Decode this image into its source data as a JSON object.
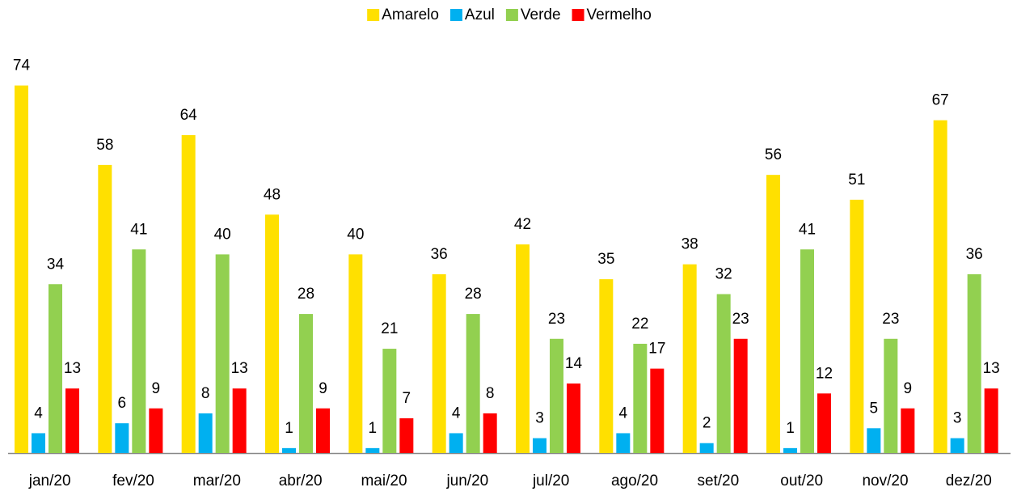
{
  "chart_data": {
    "type": "bar",
    "categories": [
      "jan/20",
      "fev/20",
      "mar/20",
      "abr/20",
      "mai/20",
      "jun/20",
      "jul/20",
      "ago/20",
      "set/20",
      "out/20",
      "nov/20",
      "dez/20"
    ],
    "series": [
      {
        "name": "Amarelo",
        "color": "#FFE000",
        "values": [
          74,
          58,
          64,
          48,
          40,
          36,
          42,
          35,
          38,
          56,
          51,
          67
        ]
      },
      {
        "name": "Azul",
        "color": "#00B0F0",
        "values": [
          4,
          6,
          8,
          1,
          1,
          4,
          3,
          4,
          2,
          1,
          5,
          3
        ]
      },
      {
        "name": "Verde",
        "color": "#92D050",
        "values": [
          34,
          41,
          40,
          28,
          21,
          28,
          23,
          22,
          32,
          41,
          23,
          36
        ]
      },
      {
        "name": "Vermelho",
        "color": "#FF0000",
        "values": [
          13,
          9,
          13,
          9,
          7,
          8,
          14,
          17,
          23,
          12,
          9,
          13
        ]
      }
    ],
    "legend": "top"
  }
}
